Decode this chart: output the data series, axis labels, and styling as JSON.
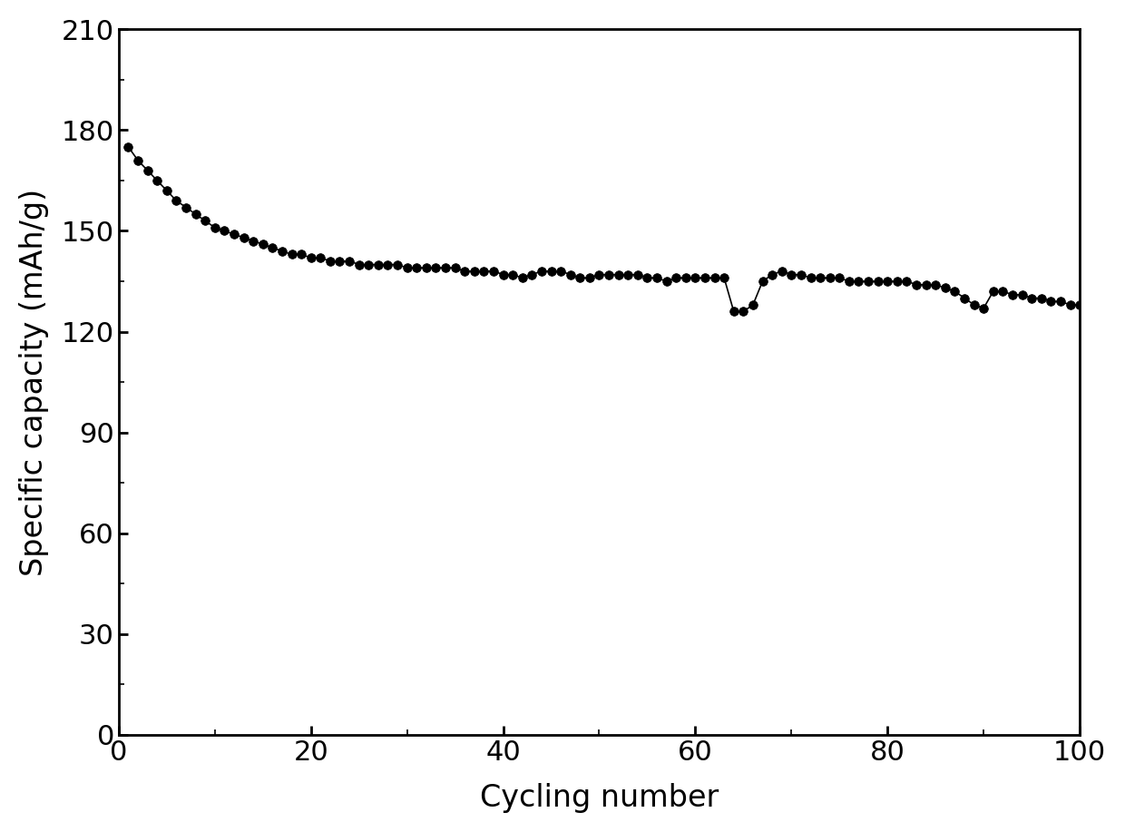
{
  "x_values": [
    1,
    2,
    3,
    4,
    5,
    6,
    7,
    8,
    9,
    10,
    11,
    12,
    13,
    14,
    15,
    16,
    17,
    18,
    19,
    20,
    21,
    22,
    23,
    24,
    25,
    26,
    27,
    28,
    29,
    30,
    31,
    32,
    33,
    34,
    35,
    36,
    37,
    38,
    39,
    40,
    41,
    42,
    43,
    44,
    45,
    46,
    47,
    48,
    49,
    50,
    51,
    52,
    53,
    54,
    55,
    56,
    57,
    58,
    59,
    60,
    61,
    62,
    63,
    64,
    65,
    66,
    67,
    68,
    69,
    70,
    71,
    72,
    73,
    74,
    75,
    76,
    77,
    78,
    79,
    80,
    81,
    82,
    83,
    84,
    85,
    86,
    87,
    88,
    89,
    90,
    91,
    92,
    93,
    94,
    95,
    96,
    97,
    98,
    99,
    100
  ],
  "y_values": [
    175,
    171,
    168,
    165,
    162,
    159,
    157,
    155,
    153,
    151,
    150,
    149,
    148,
    147,
    146,
    145,
    144,
    143,
    143,
    142,
    142,
    141,
    141,
    141,
    140,
    140,
    140,
    140,
    140,
    139,
    139,
    139,
    139,
    139,
    139,
    138,
    138,
    138,
    138,
    137,
    137,
    136,
    137,
    138,
    138,
    138,
    137,
    136,
    136,
    137,
    137,
    137,
    137,
    137,
    136,
    136,
    135,
    136,
    136,
    136,
    136,
    136,
    136,
    126,
    126,
    128,
    135,
    137,
    138,
    137,
    137,
    136,
    136,
    136,
    136,
    135,
    135,
    135,
    135,
    135,
    135,
    135,
    134,
    134,
    134,
    133,
    132,
    130,
    128,
    127,
    132,
    132,
    131,
    131,
    130,
    130,
    129,
    129,
    128,
    128
  ],
  "xlabel": "Cycling number",
  "ylabel": "Specific capacity (mAh/g)",
  "xlim": [
    0,
    100
  ],
  "ylim": [
    0,
    210
  ],
  "xticks": [
    0,
    20,
    40,
    60,
    80,
    100
  ],
  "yticks": [
    0,
    30,
    60,
    90,
    120,
    150,
    180,
    210
  ],
  "marker": "o",
  "marker_color": "#000000",
  "marker_size": 7,
  "line_width": 1.2,
  "background_color": "#ffffff",
  "xlabel_fontsize": 24,
  "ylabel_fontsize": 24,
  "tick_fontsize": 22,
  "spine_linewidth": 2.0
}
